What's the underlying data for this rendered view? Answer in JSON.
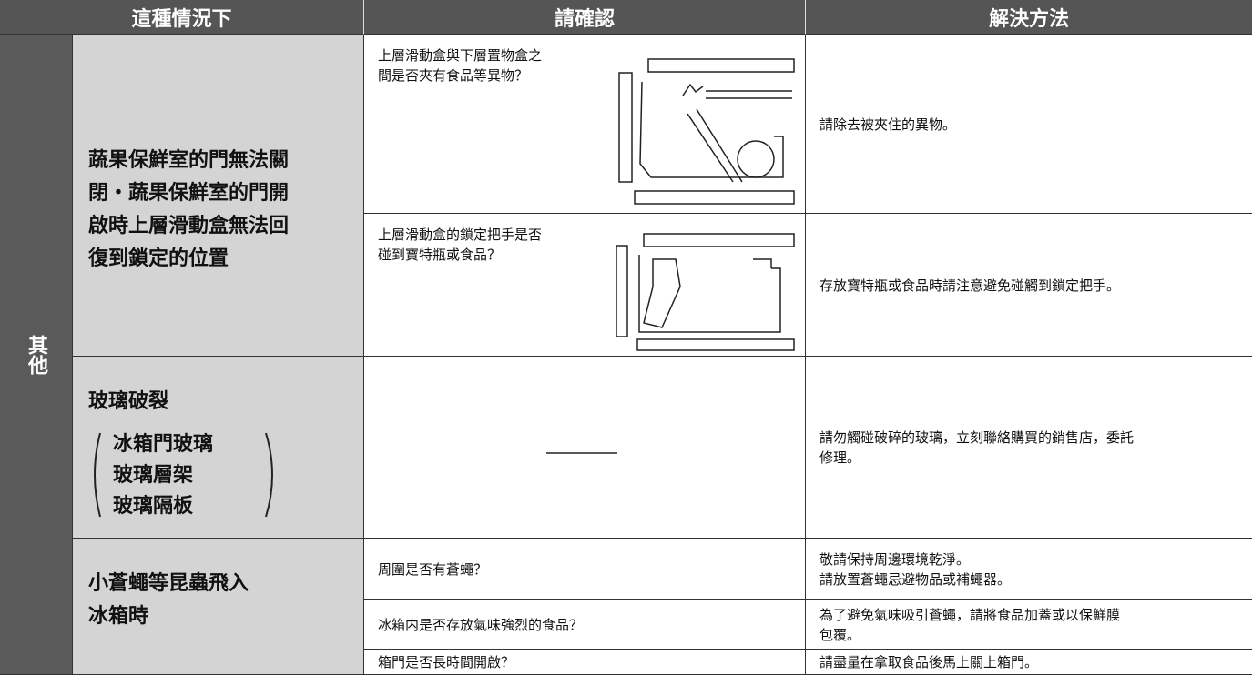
{
  "header": {
    "columns": [
      "這種情況下",
      "請確認",
      "解決方法"
    ]
  },
  "category": "其他",
  "rows": [
    {
      "situation": [
        "蔬果保鮮室的門無法關",
        "閉・蔬果保鮮室的門開",
        "啟時上層滑動盒無法回",
        "復到鎖定的位置"
      ],
      "checks": [
        {
          "check": [
            "上層滑動盒與下層置物盒之",
            "間是否夾有食品等異物？"
          ],
          "solution": [
            "請除去被夾住的異物。"
          ]
        },
        {
          "check": [
            "上層滑動盒的鎖定把手是否",
            "碰到寶特瓶或食品？"
          ],
          "solution": [
            "存放寶特瓶或食品時請注意避免碰觸到鎖定把手。"
          ]
        }
      ]
    },
    {
      "situation": [
        "玻璃破裂"
      ],
      "situation_items": [
        "冰箱門玻璃",
        "玻璃層架",
        "玻璃隔板"
      ],
      "checks": [
        {
          "check": [],
          "solution": [
            "請勿觸碰破碎的玻璃，立刻聯絡購買的銷售店，委託",
            "修理。"
          ]
        }
      ]
    },
    {
      "situation": [
        "小蒼蠅等昆蟲飛入",
        "冰箱時"
      ],
      "checks": [
        {
          "check": [
            "周圍是否有蒼蠅？"
          ],
          "solution": [
            "敬請保持周邊環境乾淨。",
            "請放置蒼蠅忌避物品或補蠅器。"
          ]
        },
        {
          "check": [
            "冰箱内是否存放氣味強烈的食品？"
          ],
          "solution": [
            "為了避免氣味吸引蒼蠅，請將食品加蓋或以保鮮膜",
            "包覆。"
          ]
        },
        {
          "check": [
            "箱門是否長時間開啟？"
          ],
          "solution": [
            "請盡量在拿取食品後馬上關上箱門。"
          ]
        }
      ]
    }
  ]
}
